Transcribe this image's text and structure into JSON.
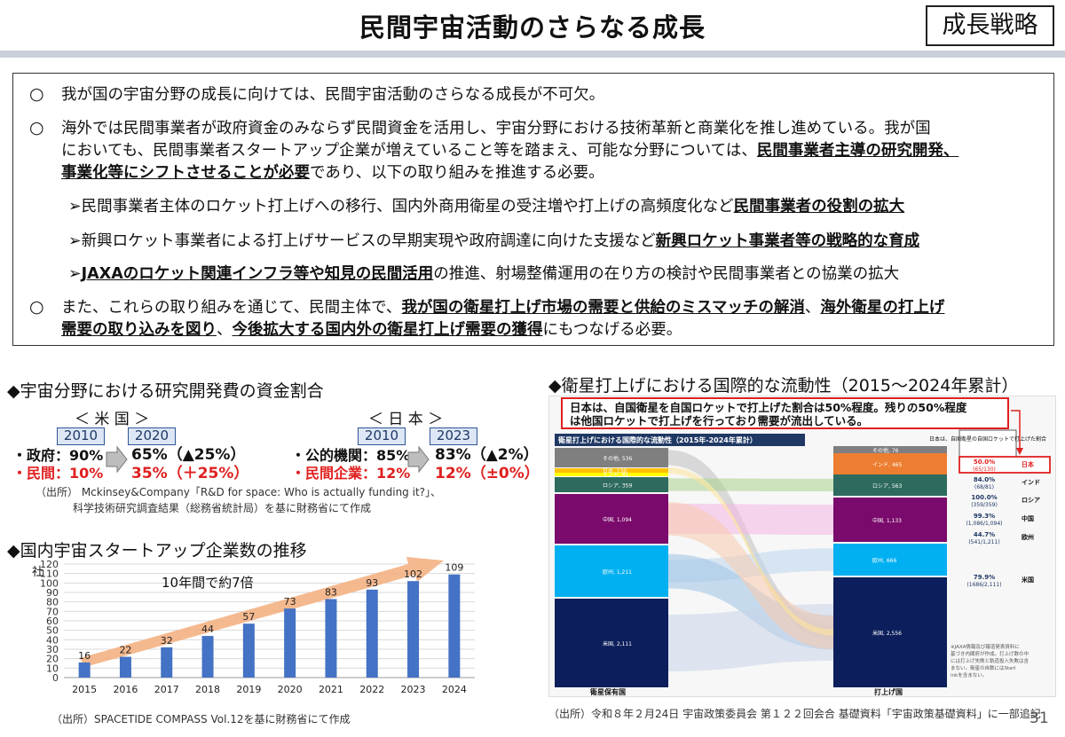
{
  "header": {
    "title": "民間宇宙活動のさらなる成長",
    "tag": "成長戦略"
  },
  "main": {
    "p1": "我が国の宇宙分野の成長に向けては、民間宇宙活動のさらなる成長が不可欠。",
    "p2_l1": "海外では民間事業者が政府資金のみならず民間資金を活用し、宇宙分野における技術革新と商業化を推し進めている。我が国",
    "p2_l2a": "においても、民間事業者スタートアップ企業が増えていること等を踏まえ、可能な分野については、",
    "p2_l2b": "民間事業者主導の研究開発、",
    "p2_l3a": "事業化等にシフトさせることが必要",
    "p2_l3b": "であり、以下の取り組みを推進する必要。",
    "a1a": "民間事業者主体のロケット打上げへの移行、国内外商用衛星の受注増や打上げの高頻度化など",
    "a1b": "民間事業者の役割の拡大",
    "a2a": "新興ロケット事業者による打上げサービスの早期実現や政府調達に向けた支援など",
    "a2b": "新興ロケット事業者等の戦略的な育成",
    "a3a": "JAXAのロケット関連インフラ等や知見の民間活用",
    "a3b": "の推進、射場整備運用の在り方の検討や民間事業者との協業の拡大",
    "p3_l1a": "また、これらの取り組みを通じて、民間主体で、",
    "p3_l1b": "我が国の衛星打上げ市場の需要と供給のミスマッチの解消",
    "p3_l1c": "、",
    "p3_l1d": "海外衛星の打上げ",
    "p3_l2a": "需要の取り込みを図り",
    "p3_l2b": "、",
    "p3_l2c": "今後拡大する国内外の衛星打上げ需要の獲得",
    "p3_l2d": "にもつなげる必要。",
    "bullet": "○",
    "arrow": "➢"
  },
  "rd": {
    "title": "◆宇宙分野における研究開発費の資金割合",
    "us_label": "＜ 米 国 ＞",
    "jp_label": "＜ 日 本 ＞",
    "us_y1": "2010",
    "us_y2": "2020",
    "jp_y1": "2010",
    "jp_y2": "2023",
    "us_gov": "・政府：90%",
    "us_priv": "・民間：10%",
    "us_gov2": "65%（▲25%）",
    "us_priv2": "35%（＋25%）",
    "jp_gov": "・公的機関：85%",
    "jp_priv": "・民間企業：12%",
    "jp_gov2": "83%（▲2%）",
    "jp_priv2": "12%（±0%）",
    "src1": "（出所） Mckinsey&Company「R&D for space: Who is actually funding it?」、",
    "src2": "科学技術研究調査結果（総務省統計局）を基に財務省にて作成"
  },
  "startup": {
    "title": "◆国内宇宙スタートアップ企業数の推移",
    "unit": "社",
    "annotation": "10年間で約7倍",
    "src": "（出所）SPACETIDE COMPASS Vol.12を基に財務省にて作成"
  },
  "chart_data": {
    "type": "bar",
    "categories": [
      "2015",
      "2016",
      "2017",
      "2018",
      "2019",
      "2020",
      "2021",
      "2022",
      "2023",
      "2024"
    ],
    "values": [
      16,
      22,
      32,
      44,
      57,
      73,
      83,
      93,
      102,
      109
    ],
    "ylim": [
      0,
      120
    ],
    "yticks": [
      "0",
      "10",
      "20",
      "30",
      "40",
      "50",
      "60",
      "70",
      "80",
      "90",
      "100",
      "110",
      "120"
    ],
    "ylabel": "社",
    "title": "",
    "xlabel": ""
  },
  "launch": {
    "title": "◆衛星打上げにおける国際的な流動性（2015～2024年累計）",
    "note1": "日本は、自国衛星を自国ロケットで打上げた割合は50%程度。残りの50%程度",
    "note2": "は他国ロケットで打上げを行っており需要が流出している。",
    "inner_title": "衛星打上げにおける国際的な流動性（2015年-2024年累計）",
    "left_axis": "衛星保有国",
    "right_axis": "打上げ国",
    "legend_head": "日本は、自国衛星の自国ロケットで打上げた割合",
    "left_nodes": [
      "その他, 536",
      "日本, 130",
      "インド, 81",
      "ロシア, 359",
      "中国, 1,094",
      "欧州, 1,211",
      "米国, 2,111"
    ],
    "right_nodes": [
      "その他, 76",
      "インド, 465",
      "ロシア, 563",
      "中国, 1,133",
      "欧州, 666",
      "米国, 2,556"
    ],
    "rates": [
      {
        "pct": "50.0%",
        "frac": "(65/130)",
        "country": "日本"
      },
      {
        "pct": "84.0%",
        "frac": "(68/81)",
        "country": "インド"
      },
      {
        "pct": "100.0%",
        "frac": "(359/359)",
        "country": "ロシア"
      },
      {
        "pct": "99.3%",
        "frac": "(1,086/1,094)",
        "country": "中国"
      },
      {
        "pct": "44.7%",
        "frac": "(541/1,211)",
        "country": "欧州"
      },
      {
        "pct": "79.9%",
        "frac": "(1686/2,111)",
        "country": "米国"
      }
    ],
    "footnote": "※JAXA情報及び報道発表資料に基づき内閣府が作成。打上げ数の中には打上げ失敗と軌道投入失敗は含まない。衛星の自数にはStarlinkを含まない。",
    "src": "（出所）令和８年２月24日 宇宙政策委員会 第１２２回会合 基礎資料「宇宙政策基礎資料」に一部追記"
  },
  "page_number": "31"
}
